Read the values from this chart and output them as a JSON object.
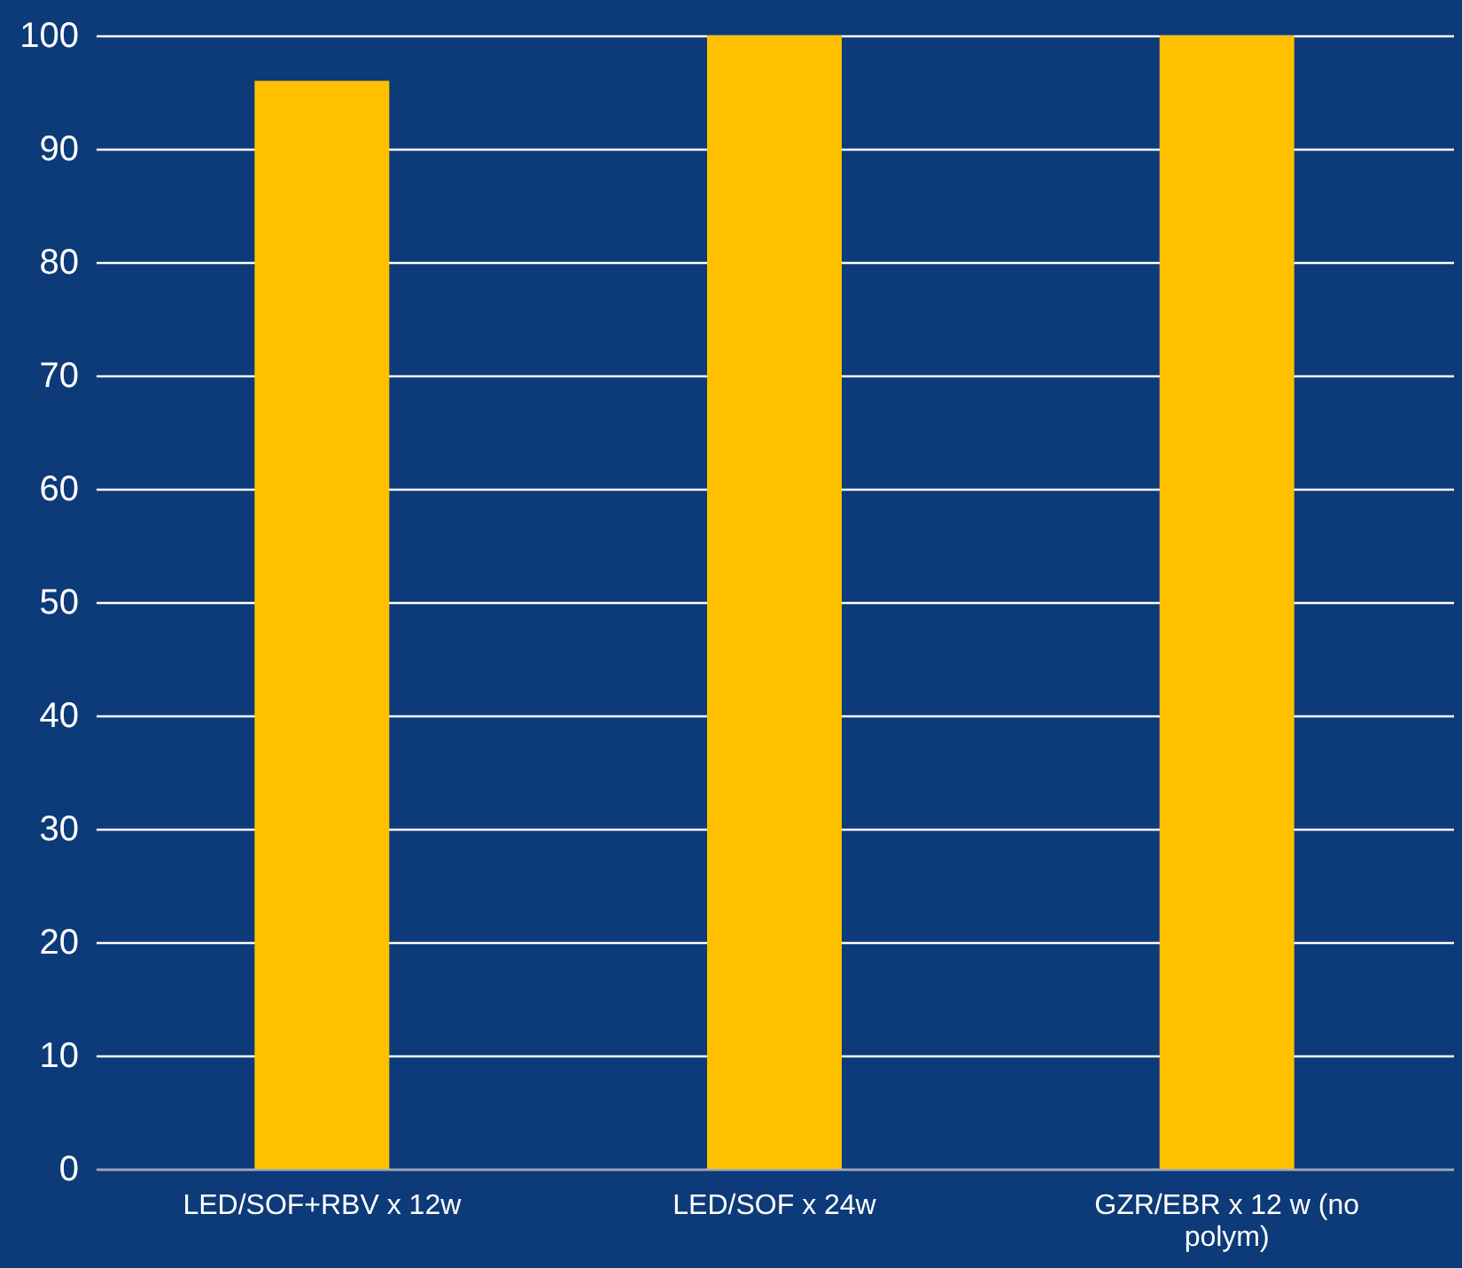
{
  "chart_data": {
    "type": "bar",
    "categories": [
      "LED/SOF+RBV x 12w",
      "LED/SOF x 24w",
      "GZR/EBR x 12 w (no polym)"
    ],
    "values": [
      96,
      100,
      100
    ],
    "color": "#ffc000",
    "ylim": [
      0,
      100
    ],
    "yticks": [
      0,
      10,
      20,
      30,
      40,
      50,
      60,
      70,
      80,
      90,
      100
    ],
    "grid": "y"
  }
}
